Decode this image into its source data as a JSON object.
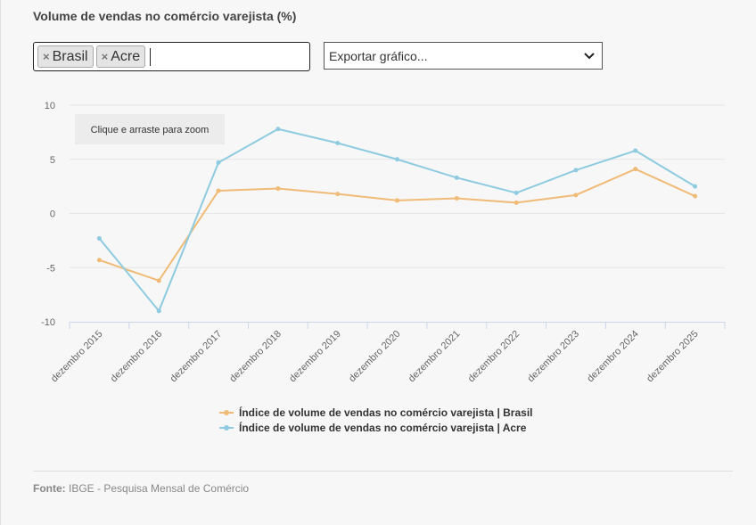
{
  "page_title": "Volume de vendas no comércio varejista (%)",
  "filter": {
    "chips": [
      {
        "label": "Brasil"
      },
      {
        "label": "Acre"
      }
    ],
    "remove_glyph": "×"
  },
  "export": {
    "label": "Exportar gráfico...",
    "icon": "chevron-down-icon"
  },
  "zoom_hint": "Clique e arraste para zoom",
  "source": {
    "label": "Fonte:",
    "text": "IBGE - Pesquisa Mensal de Comércio"
  },
  "chart_data": {
    "type": "line",
    "title": "",
    "xlabel": "",
    "ylabel": "",
    "categories": [
      "dezembro 2015",
      "dezembro 2016",
      "dezembro 2017",
      "dezembro 2018",
      "dezembro 2019",
      "dezembro 2020",
      "dezembro 2021",
      "dezembro 2022",
      "dezembro 2023",
      "dezembro 2024",
      "dezembro 2025"
    ],
    "ylim": [
      -10,
      10
    ],
    "yticks": [
      -10,
      -5,
      0,
      5,
      10
    ],
    "grid": true,
    "legend_position": "bottom",
    "series": [
      {
        "name": "Índice de volume de vendas no comércio varejista | Brasil",
        "color": "#f0bb77",
        "values": [
          -4.3,
          -6.2,
          2.1,
          2.3,
          1.8,
          1.2,
          1.4,
          1.0,
          1.7,
          4.1,
          1.6
        ]
      },
      {
        "name": "Índice de volume de vendas no comércio varejista | Acre",
        "color": "#8ecbe0",
        "values": [
          -2.3,
          -9.0,
          4.7,
          7.8,
          6.5,
          5.0,
          3.3,
          1.9,
          4.0,
          5.8,
          2.5
        ]
      }
    ]
  }
}
